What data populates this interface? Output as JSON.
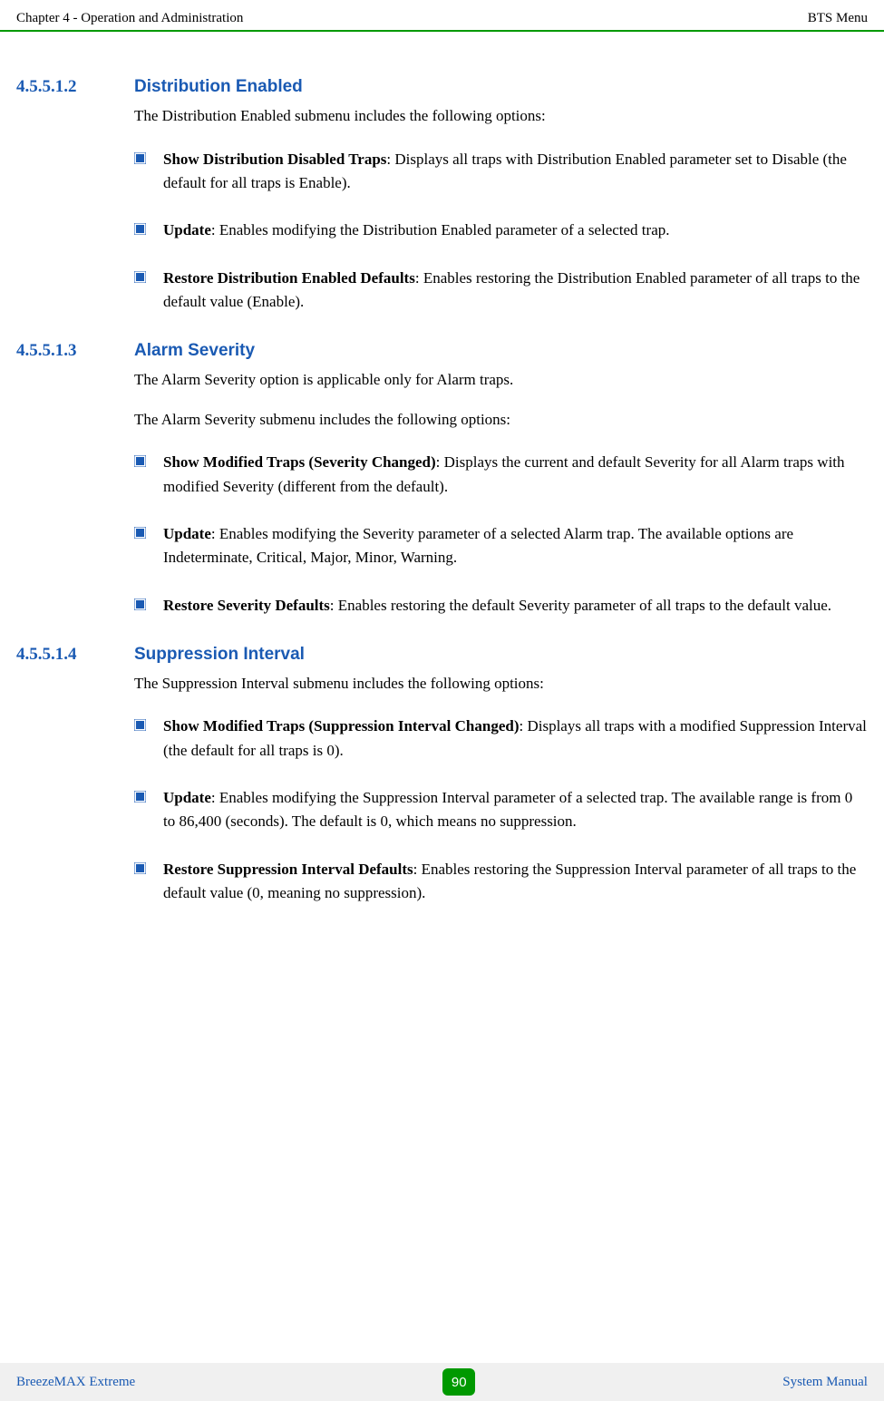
{
  "colors": {
    "heading_number": "#1a5ab3",
    "heading_title": "#1a5ab3",
    "bullet_fill": "#1a5ab3",
    "footer_text": "#1a5ab3",
    "header_border": "#009900",
    "page_badge_bg": "#009900",
    "body_text": "#000000",
    "footer_bg": "#f0f0f0"
  },
  "header": {
    "left": "Chapter 4 - Operation and Administration",
    "right": "BTS Menu"
  },
  "footer": {
    "left": "BreezeMAX Extreme",
    "page": "90",
    "right": "System Manual"
  },
  "sections": [
    {
      "number": "4.5.5.1.2",
      "title": "Distribution Enabled",
      "intro": [
        "The Distribution Enabled submenu includes the following options:"
      ],
      "items": [
        {
          "bold": "Show Distribution Disabled Traps",
          "text": ": Displays all traps with Distribution Enabled parameter set to Disable (the default for all traps is Enable)."
        },
        {
          "bold": "Update",
          "text": ": Enables modifying the Distribution Enabled parameter of a selected trap."
        },
        {
          "bold": "Restore Distribution Enabled Defaults",
          "text": ": Enables restoring the Distribution Enabled parameter of all traps to the default value (Enable)."
        }
      ]
    },
    {
      "number": "4.5.5.1.3",
      "title": "Alarm Severity",
      "intro": [
        "The Alarm Severity option is applicable only for Alarm traps.",
        "The Alarm Severity submenu includes the following options:"
      ],
      "items": [
        {
          "bold": "Show Modified Traps (Severity Changed)",
          "text": ": Displays the current and default Severity for all Alarm traps with modified Severity (different from the default)."
        },
        {
          "bold": "Update",
          "text": ": Enables modifying the Severity parameter of a selected Alarm trap. The available options are Indeterminate, Critical, Major, Minor, Warning."
        },
        {
          "bold": "Restore Severity Defaults",
          "text": ": Enables restoring the default Severity parameter of all traps to the default value."
        }
      ]
    },
    {
      "number": "4.5.5.1.4",
      "title": "Suppression Interval",
      "intro": [
        "The Suppression Interval submenu includes the following options:"
      ],
      "items": [
        {
          "bold": "Show Modified Traps (Suppression Interval Changed)",
          "text": ": Displays all traps with a modified Suppression Interval (the default for all traps is 0)."
        },
        {
          "bold": "Update",
          "text": ": Enables modifying the Suppression Interval parameter of a selected trap. The available range is from 0 to 86,400 (seconds). The default is 0, which means no suppression."
        },
        {
          "bold": "Restore Suppression Interval Defaults",
          "text": ": Enables restoring the Suppression Interval parameter of all traps to the default value (0, meaning no suppression)."
        }
      ]
    }
  ]
}
